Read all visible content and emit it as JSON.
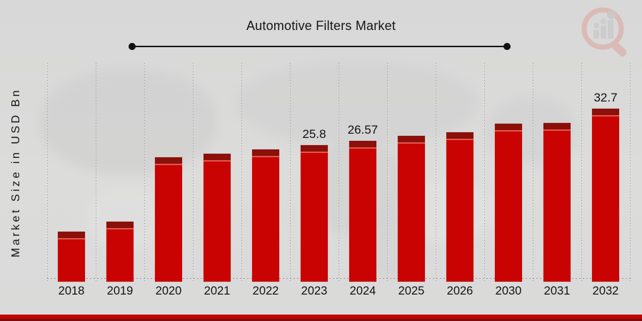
{
  "title": "Automotive Filters Market",
  "icons": {
    "logo": "magnifier-bar-chart-logo"
  },
  "chart_data": {
    "type": "bar",
    "title": "Automotive Filters Market",
    "xlabel": "",
    "ylabel": "Market Size in USD Bn",
    "categories": [
      "2018",
      "2019",
      "2020",
      "2021",
      "2022",
      "2023",
      "2024",
      "2025",
      "2026",
      "2030",
      "2031",
      "2032"
    ],
    "values": [
      9.4,
      11.4,
      23.5,
      24.2,
      25.0,
      25.8,
      26.57,
      27.5,
      28.2,
      29.9,
      30.0,
      32.7
    ],
    "data_labels": {
      "2023": "25.8",
      "2024": "26.57",
      "2032": "32.7"
    },
    "ylim": [
      0,
      35
    ],
    "grid": "dotted-vertical-columns",
    "legend": "none",
    "bar_color": "#c90302",
    "bar_cap_color": "#8c100a",
    "bar_highlight_color": "#e0564b"
  },
  "colors": {
    "background": "#dadbda",
    "map_watermark": "#cfcfcf",
    "title_text": "#161616",
    "axis_text": "#121212",
    "gridline": "#9d9d9d",
    "footer_band": "#c10404",
    "footer_band_dark": "#7d0b0b",
    "logo_ring": "#dfa29b",
    "logo_bars": "#c3c3c3"
  }
}
